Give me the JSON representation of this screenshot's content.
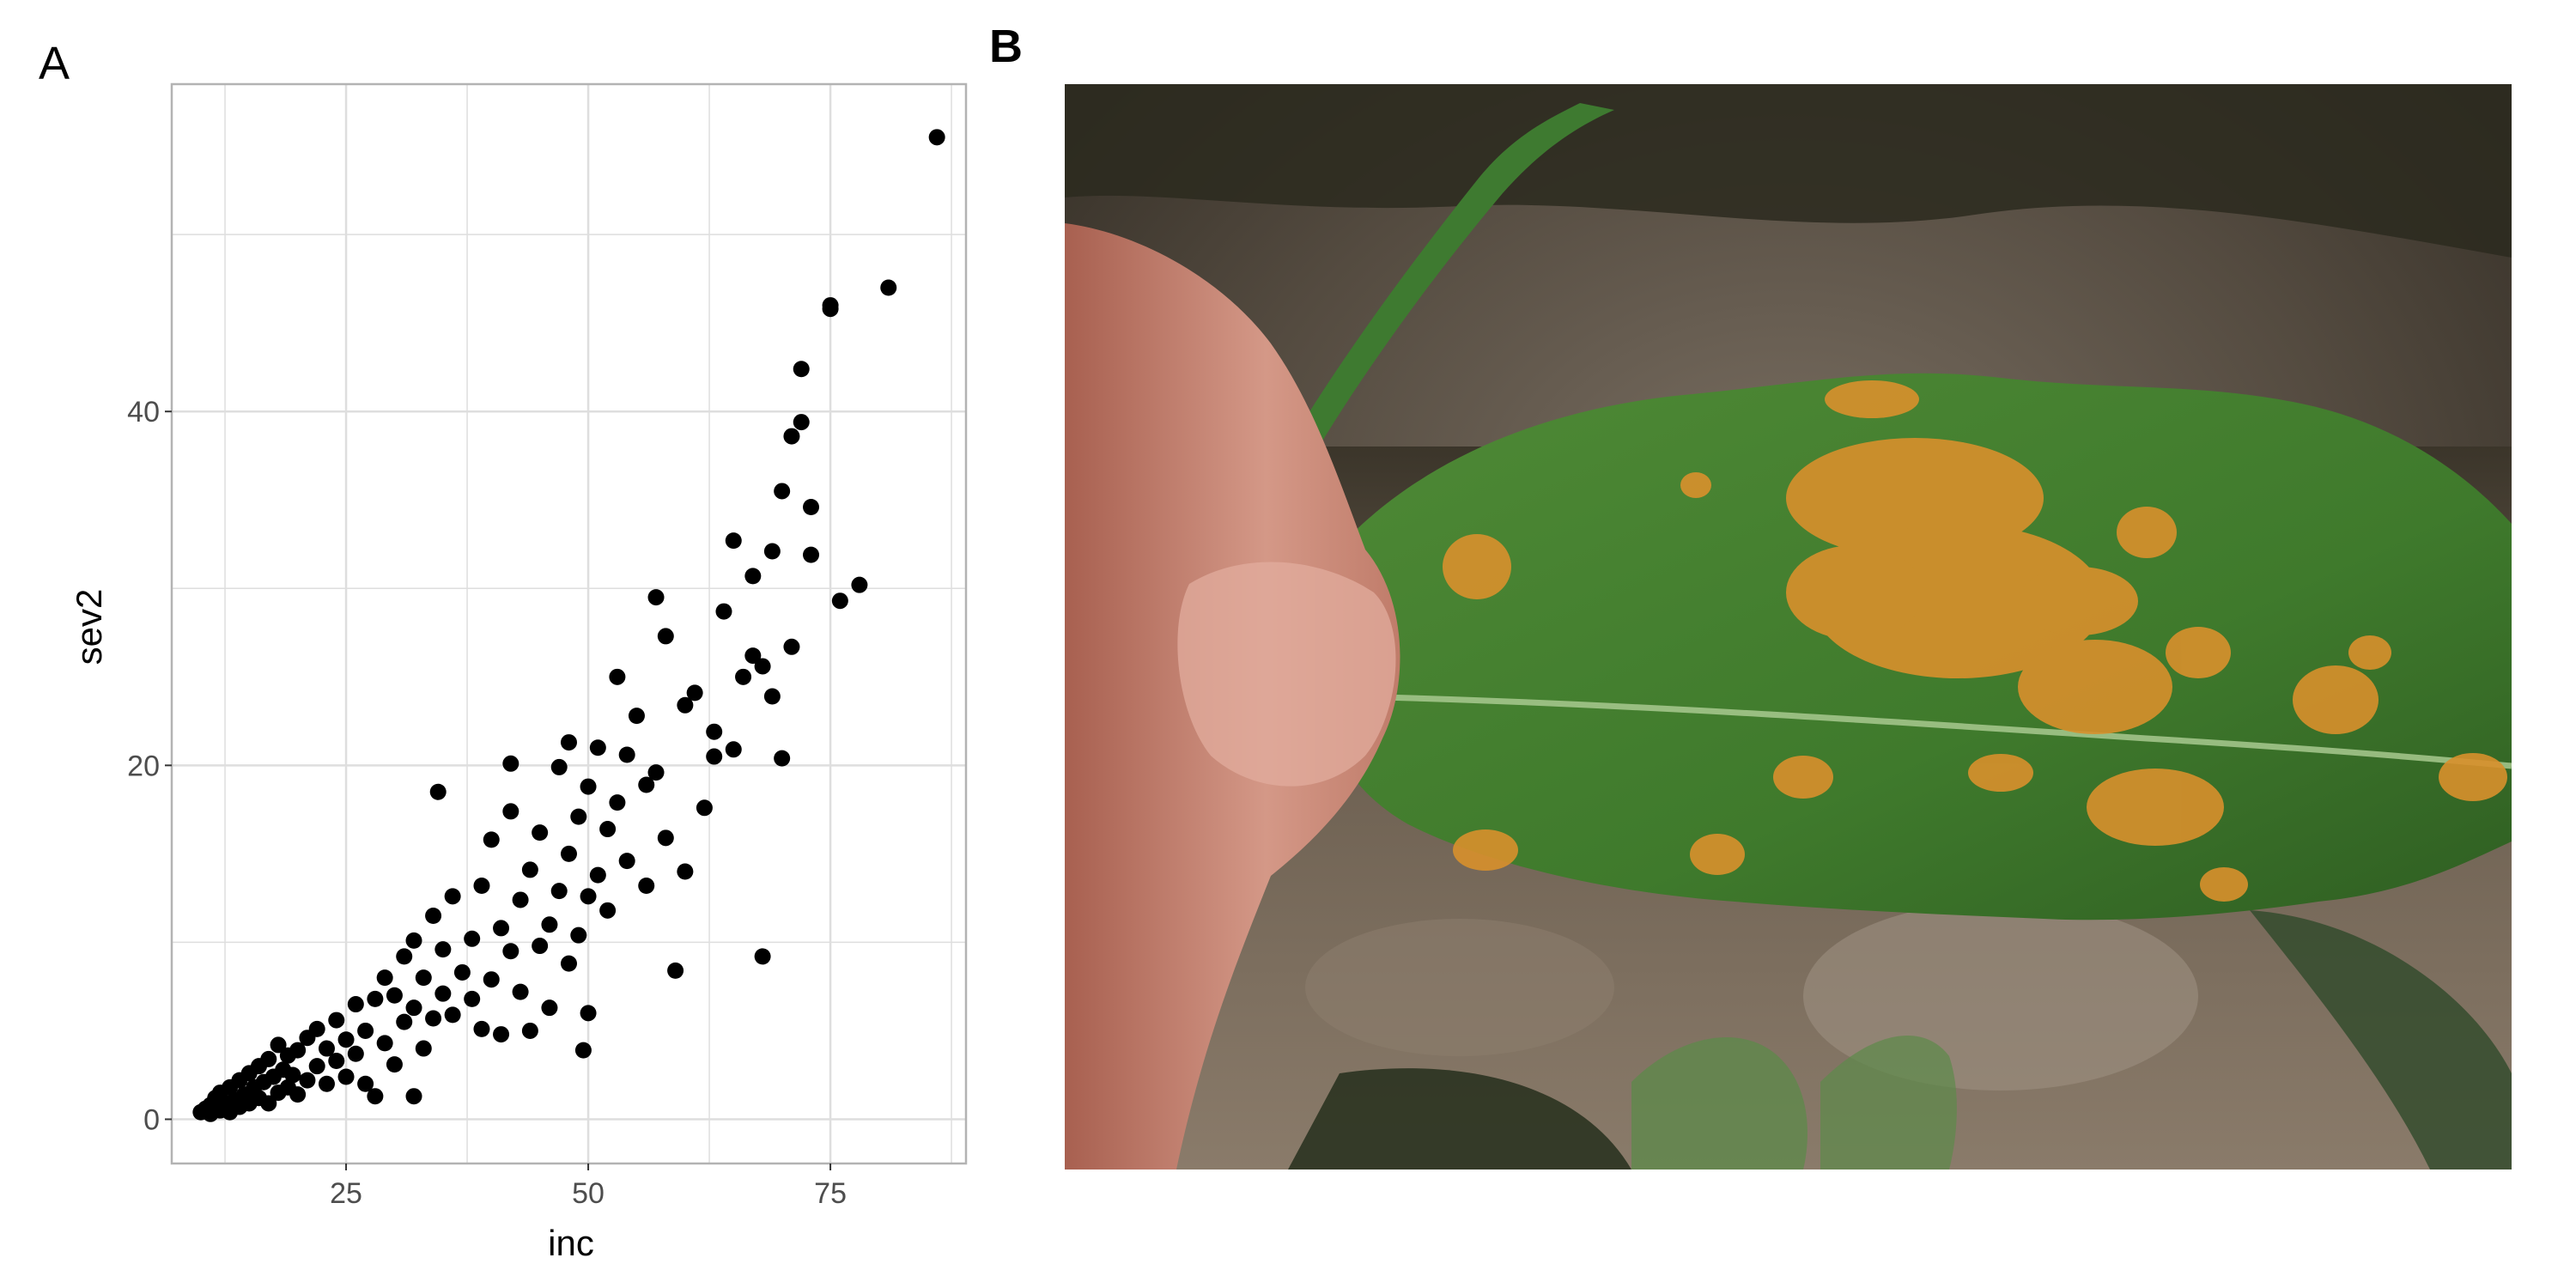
{
  "panel_a_label": "A",
  "panel_b_label": "B",
  "colors": {
    "point": "#000000",
    "grid": "#dedede",
    "panel_border": "#b3b3b3",
    "tick_text": "#4d4d4d",
    "leaf_green": "#3f7a2c",
    "rust_orange": "#d8902c",
    "skin": "#c98a78"
  },
  "photo": {
    "subject": "coffee leaf with orange rust lesions held between fingers",
    "icon": "photo-icon"
  },
  "chart_data": {
    "type": "scatter",
    "title": "",
    "xlabel": "inc",
    "ylabel": "sev2",
    "xlim": [
      7,
      89
    ],
    "ylim": [
      -2.5,
      58.5
    ],
    "xticks": [
      25,
      50,
      75
    ],
    "xtick_labels": [
      "25",
      "50",
      "75"
    ],
    "yticks": [
      0,
      20,
      40
    ],
    "ytick_labels": [
      "0",
      "20",
      "40"
    ],
    "grid": true,
    "legend": "none",
    "points": [
      [
        10,
        0.4
      ],
      [
        10.5,
        0.6
      ],
      [
        11,
        0.3
      ],
      [
        11,
        0.8
      ],
      [
        11.5,
        1.2
      ],
      [
        12,
        0.5
      ],
      [
        12,
        1.5
      ],
      [
        12.5,
        0.9
      ],
      [
        13,
        0.4
      ],
      [
        13,
        1.8
      ],
      [
        13.5,
        1.1
      ],
      [
        14,
        0.7
      ],
      [
        14,
        2.2
      ],
      [
        14.5,
        1.4
      ],
      [
        15,
        0.9
      ],
      [
        15,
        2.6
      ],
      [
        15.5,
        1.8
      ],
      [
        16,
        1.2
      ],
      [
        16,
        3.0
      ],
      [
        16.5,
        2.1
      ],
      [
        17,
        0.9
      ],
      [
        17,
        3.4
      ],
      [
        17.5,
        2.4
      ],
      [
        18,
        1.5
      ],
      [
        18,
        4.2
      ],
      [
        18.5,
        2.8
      ],
      [
        19,
        1.8
      ],
      [
        19,
        3.6
      ],
      [
        19.5,
        2.5
      ],
      [
        20,
        1.4
      ],
      [
        20,
        3.9
      ],
      [
        21,
        2.2
      ],
      [
        21,
        4.6
      ],
      [
        22,
        3.0
      ],
      [
        22,
        5.1
      ],
      [
        23,
        2.0
      ],
      [
        23,
        4.0
      ],
      [
        24,
        3.3
      ],
      [
        24,
        5.6
      ],
      [
        25,
        2.4
      ],
      [
        25,
        4.5
      ],
      [
        26,
        6.5
      ],
      [
        26,
        3.7
      ],
      [
        27,
        2.0
      ],
      [
        27,
        5.0
      ],
      [
        28,
        6.8
      ],
      [
        28,
        1.3
      ],
      [
        29,
        4.3
      ],
      [
        29,
        8.0
      ],
      [
        30,
        3.1
      ],
      [
        30,
        7.0
      ],
      [
        31,
        5.5
      ],
      [
        31,
        9.2
      ],
      [
        32,
        1.3
      ],
      [
        32,
        6.3
      ],
      [
        32,
        10.1
      ],
      [
        33,
        4.0
      ],
      [
        33,
        8.0
      ],
      [
        34,
        5.7
      ],
      [
        34,
        11.5
      ],
      [
        34.5,
        18.5
      ],
      [
        35,
        7.1
      ],
      [
        35,
        9.6
      ],
      [
        36,
        5.9
      ],
      [
        36,
        12.6
      ],
      [
        37,
        8.3
      ],
      [
        38,
        6.8
      ],
      [
        38,
        10.2
      ],
      [
        39,
        13.2
      ],
      [
        39,
        5.1
      ],
      [
        40,
        7.9
      ],
      [
        40,
        15.8
      ],
      [
        41,
        10.8
      ],
      [
        41,
        4.8
      ],
      [
        42,
        9.5
      ],
      [
        42,
        17.4
      ],
      [
        42,
        20.1
      ],
      [
        43,
        12.4
      ],
      [
        43,
        7.2
      ],
      [
        44,
        5.0
      ],
      [
        44,
        14.1
      ],
      [
        45,
        9.8
      ],
      [
        45,
        16.2
      ],
      [
        46,
        11.0
      ],
      [
        46,
        6.3
      ],
      [
        47,
        12.9
      ],
      [
        47,
        19.9
      ],
      [
        48,
        8.8
      ],
      [
        48,
        15.0
      ],
      [
        48,
        21.3
      ],
      [
        49,
        10.4
      ],
      [
        49,
        17.1
      ],
      [
        49.5,
        3.9
      ],
      [
        50,
        12.6
      ],
      [
        50,
        18.8
      ],
      [
        50,
        6.0
      ],
      [
        51,
        13.8
      ],
      [
        51,
        21.0
      ],
      [
        52,
        16.4
      ],
      [
        52,
        11.8
      ],
      [
        53,
        17.9
      ],
      [
        53,
        25.0
      ],
      [
        54,
        20.6
      ],
      [
        54,
        14.6
      ],
      [
        55,
        22.8
      ],
      [
        56,
        13.2
      ],
      [
        56,
        18.9
      ],
      [
        57,
        19.6
      ],
      [
        57,
        29.5
      ],
      [
        58,
        27.3
      ],
      [
        58,
        15.9
      ],
      [
        59,
        8.4
      ],
      [
        60,
        14.0
      ],
      [
        60,
        23.4
      ],
      [
        61,
        24.1
      ],
      [
        62,
        17.6
      ],
      [
        63,
        20.5
      ],
      [
        63,
        21.9
      ],
      [
        64,
        28.7
      ],
      [
        65,
        32.7
      ],
      [
        65,
        20.9
      ],
      [
        66,
        25.0
      ],
      [
        67,
        26.2
      ],
      [
        67,
        30.7
      ],
      [
        68,
        9.2
      ],
      [
        68,
        25.6
      ],
      [
        69,
        32.1
      ],
      [
        69,
        23.9
      ],
      [
        70,
        20.4
      ],
      [
        70,
        35.5
      ],
      [
        71,
        38.6
      ],
      [
        71,
        26.7
      ],
      [
        72,
        42.4
      ],
      [
        72,
        39.4
      ],
      [
        73,
        31.9
      ],
      [
        73,
        34.6
      ],
      [
        75,
        45.8
      ],
      [
        75,
        46.0
      ],
      [
        76,
        29.3
      ],
      [
        78,
        30.2
      ],
      [
        81,
        47.0
      ],
      [
        86,
        55.5
      ]
    ]
  }
}
